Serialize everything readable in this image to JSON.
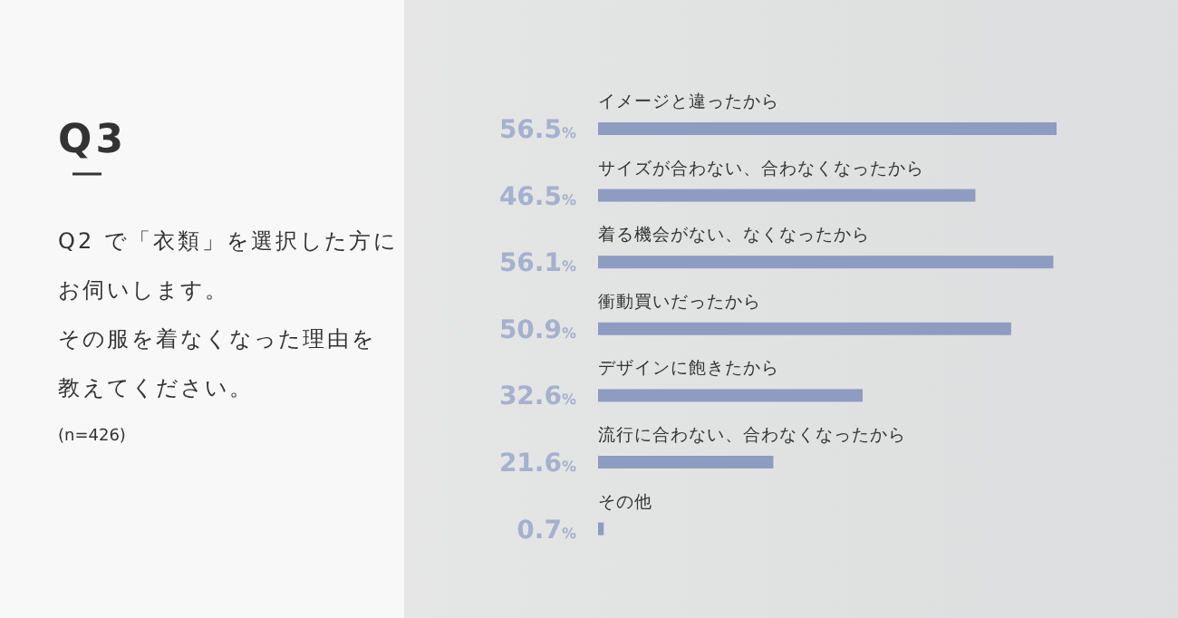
{
  "chart_data": {
    "type": "bar",
    "orientation": "horizontal",
    "title": "Q3",
    "annotations": [
      "Q2 で「衣類」を選択した方に",
      "お伺いします。",
      "その服を着なくなった理由を",
      "教えてください。",
      "(n=426)"
    ],
    "categories": [
      "イメージと違ったから",
      "サイズが合わない、合わなくなったから",
      "着る機会がない、なくなったから",
      "衝動買いだったから",
      "デザインに飽きたから",
      "流行に合わない、合わなくなったから",
      "その他"
    ],
    "values": [
      56.5,
      46.5,
      56.1,
      50.9,
      32.6,
      21.6,
      0.7
    ],
    "value_labels": [
      "56.5%",
      "46.5%",
      "56.1%",
      "50.9%",
      "32.6%",
      "21.6%",
      "0.7%"
    ],
    "color": "#8e9cc2"
  }
}
